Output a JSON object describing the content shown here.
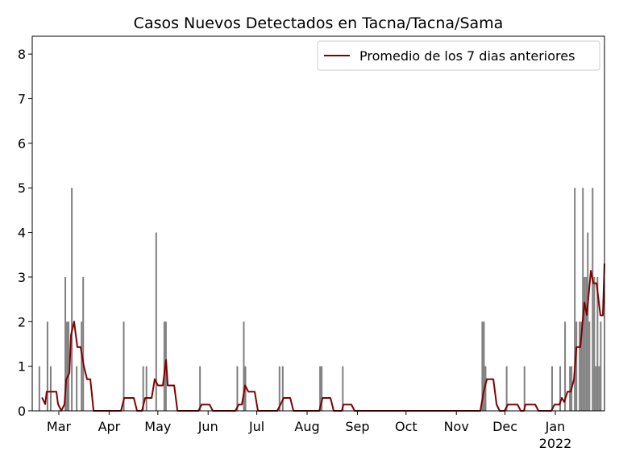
{
  "chart_data": {
    "type": "combo",
    "title": "Casos Nuevos Detectados en Tacna/Tacna/Sama",
    "xlim": [
      42.6,
      395.3
    ],
    "ylim": [
      0,
      8.4
    ],
    "yticks": [
      0,
      1,
      2,
      3,
      4,
      5,
      6,
      7,
      8
    ],
    "xticks": [
      {
        "value": 59,
        "label": "Mar"
      },
      {
        "value": 90,
        "label": "Apr"
      },
      {
        "value": 120,
        "label": "May"
      },
      {
        "value": 151,
        "label": "Jun"
      },
      {
        "value": 181,
        "label": "Jul"
      },
      {
        "value": 212,
        "label": "Aug"
      },
      {
        "value": 243,
        "label": "Sep"
      },
      {
        "value": 273,
        "label": "Oct"
      },
      {
        "value": 304,
        "label": "Nov"
      },
      {
        "value": 334,
        "label": "Dec"
      },
      {
        "value": 365,
        "label": "Jan\n2022"
      }
    ],
    "legend": "upper right",
    "series": [
      {
        "type": "bar",
        "color": "#808080",
        "x": [
          47,
          52,
          54,
          63,
          64,
          65,
          67,
          70,
          73,
          74,
          99,
          111,
          113,
          119,
          124,
          125,
          146,
          169,
          173,
          174,
          195,
          197,
          220,
          221,
          234,
          320,
          321,
          322,
          335,
          346,
          363,
          368,
          371,
          374,
          375,
          377,
          378,
          380,
          381,
          382,
          383,
          384,
          385,
          386,
          388,
          389,
          390,
          391,
          392,
          393
        ],
        "values": [
          1,
          2,
          1,
          3,
          2,
          2,
          5,
          1,
          2,
          3,
          2,
          1,
          1,
          4,
          2,
          2,
          1,
          1,
          2,
          1,
          1,
          1,
          1,
          1,
          1,
          2,
          2,
          1,
          1,
          1,
          1,
          1,
          2,
          1,
          1,
          5,
          2,
          2,
          2,
          5,
          3,
          3,
          4,
          2,
          5,
          3,
          1,
          3,
          1,
          2
        ]
      },
      {
        "type": "line",
        "name": "Promedio de los 7 dias anteriores",
        "color": "#800000",
        "x": [
          48.6,
          50.6,
          51.5,
          57.5,
          58.5,
          60.5,
          62.5,
          63.5,
          65.5,
          66.5,
          68.4,
          70.4,
          72.4,
          74.4,
          76.4,
          78.4,
          80.4,
          97.3,
          99.3,
          105.2,
          107.2,
          110.2,
          112.2,
          116.2,
          118.1,
          120.1,
          123.1,
          125.1,
          126.1,
          130.1,
          132.1,
          145,
          147,
          151.9,
          153.9,
          167.8,
          169.8,
          171.8,
          173.8,
          175.8,
          179.7,
          181.7,
          193.6,
          195.6,
          197.6,
          201.6,
          203.6,
          219.5,
          221.5,
          226.4,
          228.4,
          233.4,
          234.4,
          239.3,
          241.3,
          318.8,
          320.8,
          322.8,
          326.8,
          328.8,
          330.7,
          333.7,
          335.7,
          341.7,
          343.7,
          345.6,
          346.6,
          352.6,
          354.6,
          362.5,
          364.5,
          367.5,
          369,
          370.5,
          372.5,
          374.5,
          376.5,
          378,
          380.4,
          382.9,
          384.4,
          386.9,
          388.4,
          390.4,
          392.8,
          394.3,
          395.3
        ],
        "values": [
          0.3,
          0.15,
          0.43,
          0.43,
          0.15,
          0,
          0.15,
          0.7,
          0.85,
          1.7,
          2,
          1.43,
          1.43,
          1,
          0.71,
          0.71,
          0,
          0,
          0.29,
          0.29,
          0,
          0,
          0.29,
          0.29,
          0.71,
          0.57,
          0.57,
          1.14,
          0.57,
          0.57,
          0,
          0,
          0.14,
          0.14,
          0,
          0,
          0.14,
          0.14,
          0.57,
          0.43,
          0.43,
          0,
          0,
          0.14,
          0.29,
          0.29,
          0,
          0,
          0.29,
          0.29,
          0,
          0,
          0.14,
          0.14,
          0,
          0,
          0.43,
          0.71,
          0.71,
          0.14,
          0,
          0,
          0.14,
          0.14,
          0,
          0,
          0.14,
          0.14,
          0,
          0,
          0.14,
          0.14,
          0.29,
          0.2,
          0.43,
          0.43,
          0.71,
          1.43,
          1.43,
          2.43,
          2.15,
          3.14,
          2.86,
          2.86,
          2.14,
          2.14,
          3.3
        ]
      }
    ]
  }
}
